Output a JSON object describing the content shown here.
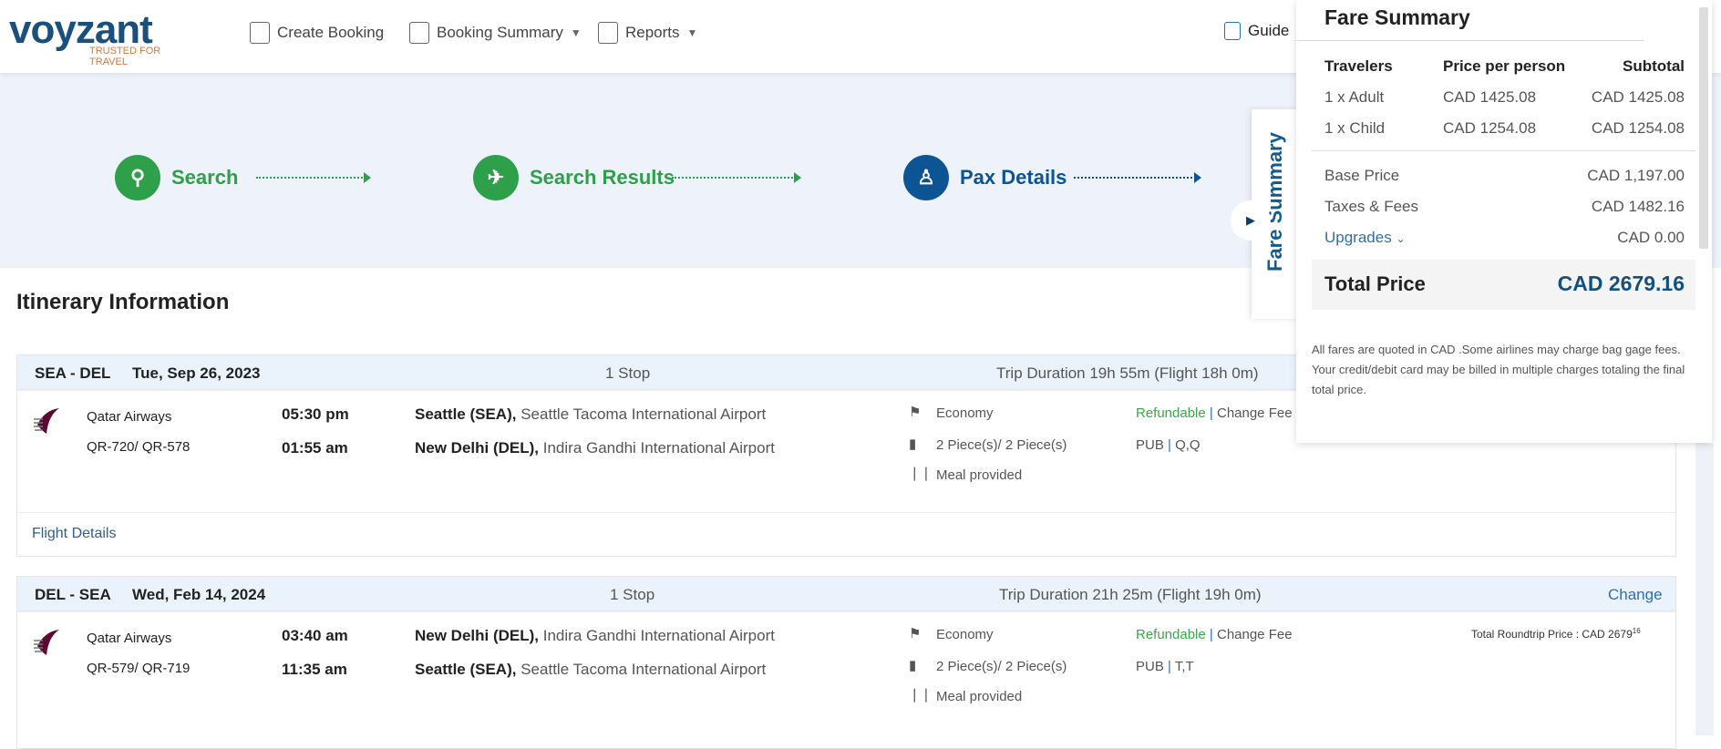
{
  "header": {
    "logo_text": "voyzant",
    "logo_tagline": "TRUSTED FOR TRAVEL",
    "nav": [
      {
        "label": "Create Booking",
        "icon": "monitor-click-icon"
      },
      {
        "label": "Booking Summary",
        "icon": "monitor-plane-icon",
        "dropdown": true
      },
      {
        "label": "Reports",
        "icon": "clipboard-icon",
        "dropdown": true
      }
    ],
    "guide": "Guide"
  },
  "steps": [
    {
      "label": "Search",
      "icon": "search-icon",
      "color": "#2ea04a"
    },
    {
      "label": "Search Results",
      "icon": "plane-icon",
      "color": "#2ea04a"
    },
    {
      "label": "Pax Details",
      "icon": "traveler-icon",
      "color": "#0d5494"
    }
  ],
  "itinerary": {
    "title": "Itinerary Information",
    "legs": [
      {
        "route": "SEA - DEL",
        "date": "Tue, Sep 26, 2023",
        "stops": "1 Stop",
        "duration": "Trip Duration 19h 55m (Flight 18h 0m)",
        "airline": "Qatar Airways",
        "flights": "QR-720/ QR-578",
        "dep_time": "05:30 pm",
        "dep_city": "Seattle (SEA),",
        "dep_airport": "Seattle Tacoma International Airport",
        "arr_time": "01:55 am",
        "arr_city": "New Delhi (DEL),",
        "arr_airport": "Indira Gandhi International Airport",
        "cabin": "Economy",
        "baggage": "2 Piece(s)/ 2 Piece(s)",
        "meal": "Meal provided",
        "refundable": "Refundable",
        "change_fee": "Change Fee",
        "fare_type": "PUB",
        "fare_class": "Q,Q",
        "details_link": "Flight Details"
      },
      {
        "route": "DEL - SEA",
        "date": "Wed, Feb 14, 2024",
        "stops": "1 Stop",
        "duration": "Trip Duration 21h 25m (Flight 19h 0m)",
        "change": "Change",
        "airline": "Qatar Airways",
        "flights": "QR-579/ QR-719",
        "dep_time": "03:40 am",
        "dep_city": "New Delhi (DEL),",
        "dep_airport": "Indira Gandhi International Airport",
        "arr_time": "11:35 am",
        "arr_city": "Seattle (SEA),",
        "arr_airport": "Seattle Tacoma International Airport",
        "cabin": "Economy",
        "baggage": "2 Piece(s)/ 2 Piece(s)",
        "meal": "Meal provided",
        "refundable": "Refundable",
        "change_fee": "Change Fee",
        "fare_type": "PUB",
        "fare_class": "T,T",
        "roundtrip_label": "Total Roundtrip Price : CAD 2679",
        "roundtrip_cents": "16"
      }
    ]
  },
  "fare": {
    "tab": "Fare Summary",
    "title": "Fare Summary",
    "cols": [
      "Travelers",
      "Price per person",
      "Subtotal"
    ],
    "rows": [
      [
        "1 x Adult",
        "CAD 1425.08",
        "CAD 1425.08"
      ],
      [
        "1 x Child",
        "CAD 1254.08",
        "CAD 1254.08"
      ]
    ],
    "base_label": "Base Price",
    "base": "CAD 1,197.00",
    "taxes_label": "Taxes & Fees",
    "taxes": "CAD 1482.16",
    "upgrades_label": "Upgrades",
    "upgrades": "CAD 0.00",
    "total_label": "Total Price",
    "total": "CAD 2679.16",
    "note": "All fares are quoted in CAD .Some airlines may charge bag gage fees. Your credit/debit card may be billed in multiple charges totaling the final total price."
  }
}
